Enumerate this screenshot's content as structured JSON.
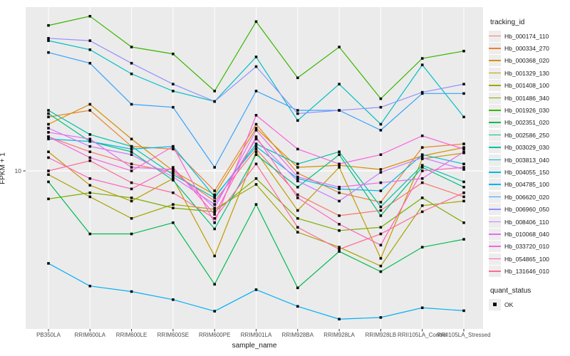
{
  "chart_data": {
    "type": "line",
    "title": "",
    "xlabel": "sample_name",
    "ylabel": "FPKM + 1",
    "y_scale": "log10",
    "y_major_tick": 10,
    "y_tick_label": "10",
    "ylim_approx": [
      1.1,
      97
    ],
    "grid": "on",
    "legend_position": "right",
    "categories": [
      "PB350LA",
      "RRIM600LA",
      "RRIM600LE",
      "RRIM600SE",
      "RRIM600PE",
      "RRIM901LA",
      "RRIM928BA",
      "RRIM928LA",
      "RRIM928LB",
      "RRII105LA_Control",
      "RRII105LA_Stressed"
    ],
    "series": [
      {
        "name": "Hb_000174_110",
        "color": "#F8766D",
        "values": [
          16,
          13,
          11,
          9.8,
          6.6,
          13.5,
          7.2,
          5.4,
          5.8,
          8.5,
          7.0
        ]
      },
      {
        "name": "Hb_000334_270",
        "color": "#EA8331",
        "values": [
          21,
          23,
          14,
          13.5,
          7.6,
          19,
          9.7,
          7.4,
          6.5,
          13.8,
          14.5
        ]
      },
      {
        "name": "Hb_000368_020",
        "color": "#D89000",
        "values": [
          19,
          25,
          15.5,
          10,
          7.2,
          18,
          10.5,
          10.8,
          10.2,
          12.3,
          13.8
        ]
      },
      {
        "name": "Hb_001329_130",
        "color": "#C09B00",
        "values": [
          13,
          8.2,
          6.6,
          9.0,
          3.1,
          13,
          5.8,
          10.5,
          3.0,
          11.8,
          12.8
        ]
      },
      {
        "name": "Hb_001408_100",
        "color": "#A3A500",
        "values": [
          9.5,
          7.0,
          5.2,
          6.3,
          5.9,
          8.3,
          4.3,
          3.5,
          2.7,
          6.2,
          6.6
        ]
      },
      {
        "name": "Hb_001486_340",
        "color": "#7CAE00",
        "values": [
          6.8,
          7.4,
          6.9,
          6.0,
          5.7,
          9.0,
          5.2,
          4.4,
          4.6,
          6.9,
          4.9
        ]
      },
      {
        "name": "Hb_001926_030",
        "color": "#39B600",
        "values": [
          74,
          84,
          55,
          50,
          30,
          78,
          36,
          55,
          27,
          47,
          52
        ]
      },
      {
        "name": "Hb_002351_020",
        "color": "#00BB4E",
        "values": [
          8.6,
          4.2,
          4.2,
          4.9,
          2.1,
          6.3,
          2.0,
          3.3,
          2.5,
          3.5,
          3.9
        ]
      },
      {
        "name": "Hb_002586_250",
        "color": "#00BF7D",
        "values": [
          22,
          15,
          13,
          8.8,
          4.5,
          12.5,
          8.0,
          12.5,
          5.4,
          10.5,
          8.0
        ]
      },
      {
        "name": "Hb_003029_030",
        "color": "#00C1A3",
        "values": [
          23,
          16.5,
          14,
          9.5,
          6.9,
          14.5,
          11,
          13,
          6.1,
          10.8,
          8.6
        ]
      },
      {
        "name": "Hb_003813_040",
        "color": "#00BFC4",
        "values": [
          60,
          53,
          38,
          30,
          26,
          48,
          20,
          33,
          19,
          43,
          21
        ]
      },
      {
        "name": "Hb_004055_150",
        "color": "#00BAE0",
        "values": [
          15.5,
          15,
          13.5,
          14,
          7.0,
          14,
          9.0,
          7.8,
          7.6,
          12.5,
          11
        ]
      },
      {
        "name": "Hb_004785_100",
        "color": "#00B0F6",
        "values": [
          2.8,
          2.05,
          1.9,
          1.7,
          1.45,
          1.95,
          1.55,
          1.3,
          1.33,
          1.52,
          1.46
        ]
      },
      {
        "name": "Hb_006620_020",
        "color": "#35A2FF",
        "values": [
          51,
          44,
          25,
          24,
          10.5,
          30,
          23,
          23,
          17.5,
          29,
          29
        ]
      },
      {
        "name": "Hb_006960_050",
        "color": "#9590FF",
        "values": [
          62,
          60,
          44,
          33,
          26,
          42,
          22,
          23,
          24,
          29.5,
          33
        ]
      },
      {
        "name": "Hb_008406_110",
        "color": "#C77CFF",
        "values": [
          18,
          14,
          12.5,
          9.2,
          6.3,
          15.5,
          8.7,
          6.6,
          9.8,
          12,
          10.2
        ]
      },
      {
        "name": "Hb_010068_040",
        "color": "#E76BF3",
        "values": [
          17,
          15.5,
          10.5,
          10.2,
          6.0,
          17.5,
          9.2,
          8.0,
          8.5,
          9.0,
          13
        ]
      },
      {
        "name": "Hb_033720_010",
        "color": "#FA62DB",
        "values": [
          16,
          12,
          10,
          14,
          4.9,
          21.5,
          13.5,
          11,
          12.5,
          16.2,
          13.5
        ]
      },
      {
        "name": "Hb_054865_100",
        "color": "#FF62BC",
        "values": [
          12,
          9.0,
          7.8,
          10.5,
          5.5,
          16,
          6.9,
          4.8,
          3.6,
          10,
          10.5
        ]
      },
      {
        "name": "Hb_131646_010",
        "color": "#FF6A98",
        "values": [
          10,
          11.5,
          8.5,
          7.4,
          5.2,
          11,
          4.6,
          3.4,
          4.2,
          5.7,
          7.4
        ]
      }
    ],
    "colors": {
      "panel_background": "#EBEBEB",
      "gridline": "#FFFFFF",
      "point": "#0a0a0a",
      "tick_mark": "#333333",
      "tick_text": "#4D4D4D",
      "title_text": "#1a1a1a",
      "legend_key_background": "#EDEDED"
    }
  },
  "legend": {
    "tracking_title": "tracking_id",
    "quant_title": "quant_status",
    "quant_ok_label": "OK"
  }
}
